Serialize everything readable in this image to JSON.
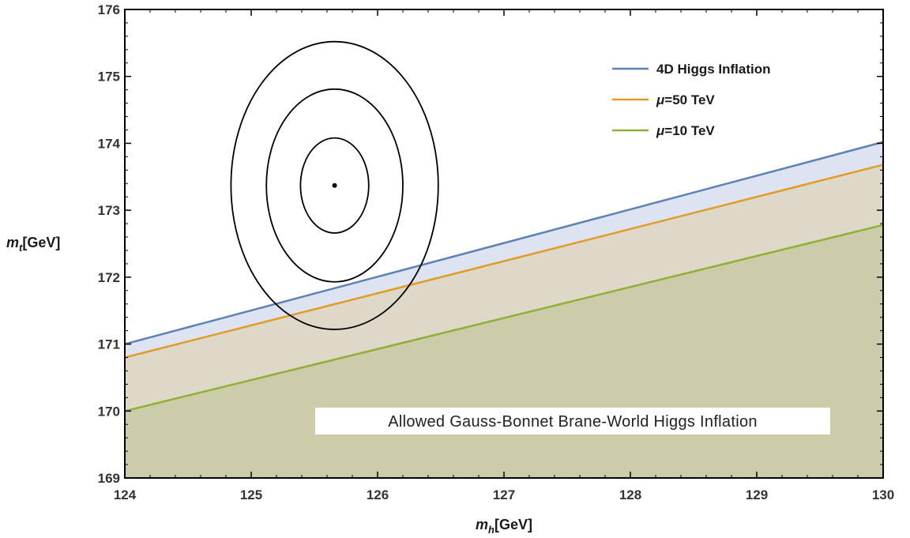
{
  "chart_data": {
    "type": "line",
    "xlabel": {
      "base": "m",
      "sub": "h",
      "unit": "[GeV]"
    },
    "ylabel": {
      "base": "m",
      "sub": "t",
      "unit": "[GeV]"
    },
    "xlim": [
      124,
      130
    ],
    "ylim": [
      169,
      176
    ],
    "xticks": [
      124,
      125,
      126,
      127,
      128,
      129,
      130
    ],
    "yticks": [
      169,
      170,
      171,
      172,
      173,
      174,
      175,
      176
    ],
    "series": [
      {
        "name": "4D Higgs Inflation",
        "color": "#5e81b5",
        "fill": "#dde3f0",
        "x": [
          124,
          130
        ],
        "y": [
          171.0,
          174.02
        ]
      },
      {
        "name": "μ=50 TeV",
        "name_prefix": "μ",
        "name_rest": "=50 TeV",
        "color": "#e19c24",
        "fill": "#ded8c8",
        "x": [
          124,
          130
        ],
        "y": [
          170.8,
          173.68
        ]
      },
      {
        "name": "μ=10 TeV",
        "name_prefix": "μ",
        "name_rest": "=10 TeV",
        "color": "#8fb032",
        "fill": "#ccccab",
        "x": [
          124,
          130
        ],
        "y": [
          170.0,
          172.78
        ]
      }
    ],
    "ellipses": {
      "center": [
        125.66,
        173.37
      ],
      "rx": [
        0.27,
        0.54,
        0.82
      ],
      "ry": [
        0.71,
        1.44,
        2.15
      ],
      "color": "#000000"
    },
    "annotation": "Allowed Gauss-Bonnet Brane-World Higgs Inflation",
    "legend_position": "top-right",
    "grid": false
  }
}
